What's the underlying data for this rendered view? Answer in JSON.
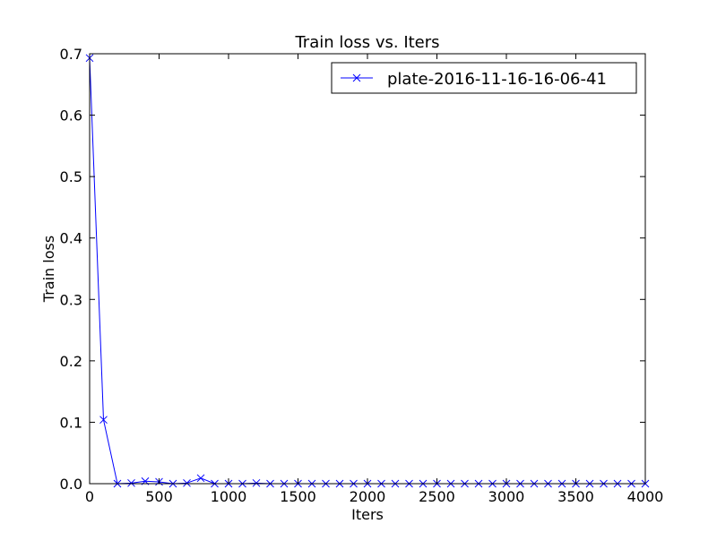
{
  "chart_data": {
    "type": "line",
    "title": "Train loss  vs. Iters",
    "xlabel": "Iters",
    "ylabel": "Train loss",
    "xlim": [
      0,
      4000
    ],
    "ylim": [
      0,
      0.7
    ],
    "xticks": [
      0,
      500,
      1000,
      1500,
      2000,
      2500,
      3000,
      3500,
      4000
    ],
    "yticks": [
      0.0,
      0.1,
      0.2,
      0.3,
      0.4,
      0.5,
      0.6,
      0.7
    ],
    "xtick_labels": [
      "0",
      "500",
      "1000",
      "1500",
      "2000",
      "2500",
      "3000",
      "3500",
      "4000"
    ],
    "ytick_labels": [
      "0.0",
      "0.1",
      "0.2",
      "0.3",
      "0.4",
      "0.5",
      "0.6",
      "0.7"
    ],
    "grid": false,
    "legend_position": "top-right",
    "series": [
      {
        "name": "plate-2016-11-16-16-06-41",
        "color": "#0000ff",
        "marker": "x",
        "x": [
          0,
          100,
          200,
          300,
          400,
          500,
          600,
          700,
          800,
          900,
          1000,
          1100,
          1200,
          1300,
          1400,
          1500,
          1600,
          1700,
          1800,
          1900,
          2000,
          2100,
          2200,
          2300,
          2400,
          2500,
          2600,
          2700,
          2800,
          2900,
          3000,
          3100,
          3200,
          3300,
          3400,
          3500,
          3600,
          3700,
          3800,
          3900,
          4000
        ],
        "y": [
          0.693,
          0.104,
          0.0,
          0.001,
          0.004,
          0.003,
          0.0,
          0.001,
          0.009,
          0.0,
          0.0,
          0.0,
          0.001,
          0.0,
          0.0,
          0.0,
          0.0,
          0.0,
          0.0,
          0.0,
          0.0,
          0.0,
          0.0,
          0.0,
          0.0,
          0.0,
          0.0,
          0.0,
          0.0,
          0.0,
          0.0,
          0.0,
          0.0,
          0.0,
          0.0,
          0.0,
          0.0,
          0.0,
          0.0,
          0.0,
          0.0
        ]
      }
    ]
  }
}
